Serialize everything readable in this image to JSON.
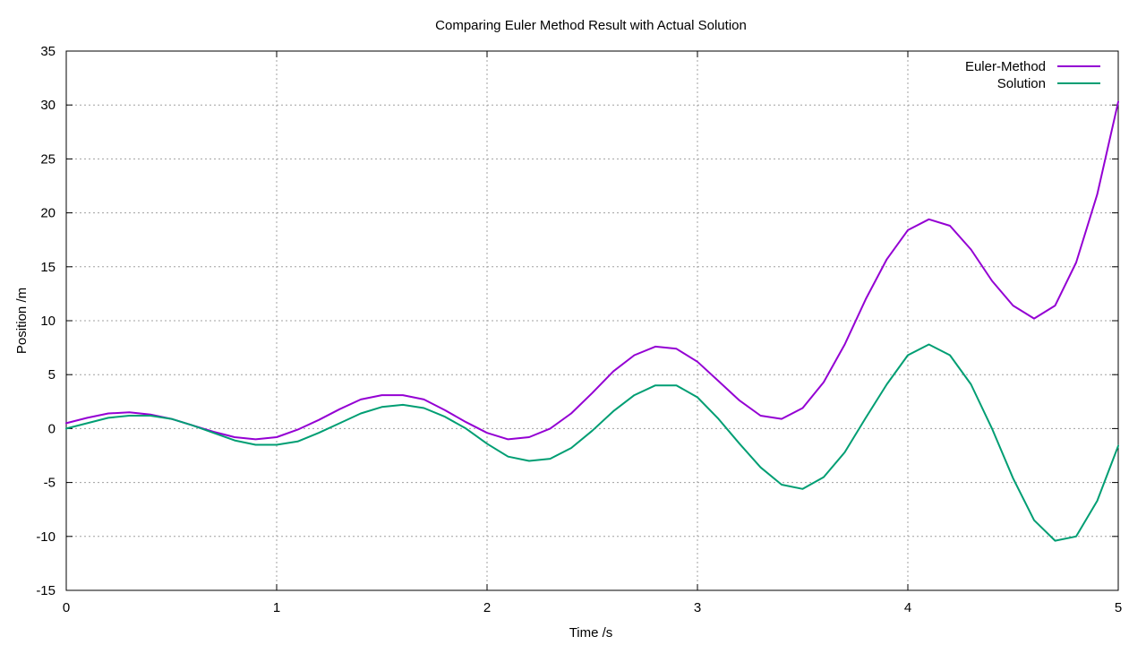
{
  "chart_data": {
    "type": "line",
    "title": "Comparing Euler Method Result with Actual Solution",
    "xlabel": "Time /s",
    "ylabel": "Position /m",
    "xlim": [
      0,
      5
    ],
    "ylim": [
      -15,
      35
    ],
    "xticks": [
      "0",
      "1",
      "2",
      "3",
      "4",
      "5"
    ],
    "yticks": [
      "-15",
      "-10",
      "-5",
      "0",
      "5",
      "10",
      "15",
      "20",
      "25",
      "30",
      "35"
    ],
    "grid": true,
    "legend_position": "top-right",
    "x": [
      0,
      0.1,
      0.2,
      0.3,
      0.4,
      0.5,
      0.6,
      0.7,
      0.8,
      0.9,
      1.0,
      1.1,
      1.2,
      1.3,
      1.4,
      1.5,
      1.6,
      1.7,
      1.8,
      1.9,
      2.0,
      2.1,
      2.2,
      2.3,
      2.4,
      2.5,
      2.6,
      2.7,
      2.8,
      2.9,
      3.0,
      3.1,
      3.2,
      3.3,
      3.4,
      3.5,
      3.6,
      3.7,
      3.8,
      3.9,
      4.0,
      4.1,
      4.2,
      4.3,
      4.4,
      4.5,
      4.6,
      4.7,
      4.8,
      4.9,
      5.0
    ],
    "series": [
      {
        "name": "Euler-Method",
        "color": "#9400d3",
        "values": [
          0.5,
          1.0,
          1.4,
          1.5,
          1.3,
          0.9,
          0.3,
          -0.3,
          -0.8,
          -1.0,
          -0.8,
          -0.1,
          0.8,
          1.8,
          2.7,
          3.1,
          3.1,
          2.7,
          1.7,
          0.6,
          -0.4,
          -1.0,
          -0.8,
          0.0,
          1.4,
          3.3,
          5.3,
          6.8,
          7.6,
          7.4,
          6.2,
          4.4,
          2.6,
          1.2,
          0.9,
          1.9,
          4.3,
          7.8,
          12.0,
          15.7,
          18.4,
          19.4,
          18.8,
          16.6,
          13.7,
          11.4,
          10.2,
          11.4,
          15.4,
          21.7,
          30.3
        ]
      },
      {
        "name": "Solution",
        "color": "#009e73",
        "values": [
          0.0,
          0.5,
          1.0,
          1.2,
          1.2,
          0.9,
          0.3,
          -0.4,
          -1.1,
          -1.5,
          -1.5,
          -1.2,
          -0.4,
          0.5,
          1.4,
          2.0,
          2.2,
          1.9,
          1.1,
          0.0,
          -1.4,
          -2.6,
          -3.0,
          -2.8,
          -1.8,
          -0.2,
          1.6,
          3.1,
          4.0,
          4.0,
          2.9,
          0.9,
          -1.4,
          -3.6,
          -5.2,
          -5.6,
          -4.5,
          -2.2,
          1.0,
          4.1,
          6.8,
          7.8,
          6.8,
          4.1,
          0.0,
          -4.6,
          -8.5,
          -10.4,
          -10.0,
          -6.7,
          -1.6
        ]
      }
    ]
  }
}
